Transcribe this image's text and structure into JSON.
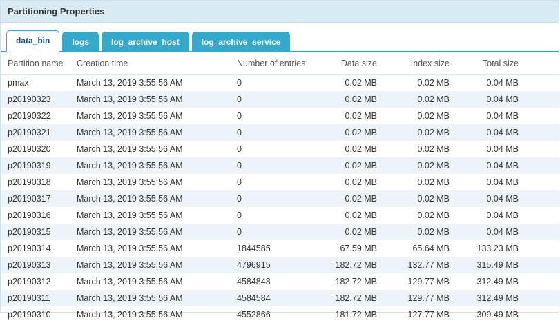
{
  "panel": {
    "title": "Partitioning Properties"
  },
  "tabs": [
    {
      "label": "data_bin",
      "active": true
    },
    {
      "label": "logs",
      "active": false
    },
    {
      "label": "log_archive_host",
      "active": false
    },
    {
      "label": "log_archive_service",
      "active": false
    }
  ],
  "table": {
    "columns": [
      "Partition name",
      "Creation time",
      "Number of entries",
      "Data size",
      "Index size",
      "Total size"
    ],
    "rows": [
      [
        "pmax",
        "March 13, 2019 3:55:56 AM",
        "0",
        "0.02 MB",
        "0.02 MB",
        "0.04 MB"
      ],
      [
        "p20190323",
        "March 13, 2019 3:55:56 AM",
        "0",
        "0.02 MB",
        "0.02 MB",
        "0.04 MB"
      ],
      [
        "p20190322",
        "March 13, 2019 3:55:56 AM",
        "0",
        "0.02 MB",
        "0.02 MB",
        "0.04 MB"
      ],
      [
        "p20190321",
        "March 13, 2019 3:55:56 AM",
        "0",
        "0.02 MB",
        "0.02 MB",
        "0.04 MB"
      ],
      [
        "p20190320",
        "March 13, 2019 3:55:56 AM",
        "0",
        "0.02 MB",
        "0.02 MB",
        "0.04 MB"
      ],
      [
        "p20190319",
        "March 13, 2019 3:55:56 AM",
        "0",
        "0.02 MB",
        "0.02 MB",
        "0.04 MB"
      ],
      [
        "p20190318",
        "March 13, 2019 3:55:56 AM",
        "0",
        "0.02 MB",
        "0.02 MB",
        "0.04 MB"
      ],
      [
        "p20190317",
        "March 13, 2019 3:55:56 AM",
        "0",
        "0.02 MB",
        "0.02 MB",
        "0.04 MB"
      ],
      [
        "p20190316",
        "March 13, 2019 3:55:56 AM",
        "0",
        "0.02 MB",
        "0.02 MB",
        "0.04 MB"
      ],
      [
        "p20190315",
        "March 13, 2019 3:55:56 AM",
        "0",
        "0.02 MB",
        "0.02 MB",
        "0.04 MB"
      ],
      [
        "p20190314",
        "March 13, 2019 3:55:56 AM",
        "1844585",
        "67.59 MB",
        "65.64 MB",
        "133.23 MB"
      ],
      [
        "p20190313",
        "March 13, 2019 3:55:56 AM",
        "4796915",
        "182.72 MB",
        "132.77 MB",
        "315.49 MB"
      ],
      [
        "p20190312",
        "March 13, 2019 3:55:56 AM",
        "4584848",
        "182.72 MB",
        "129.77 MB",
        "312.49 MB"
      ],
      [
        "p20190311",
        "March 13, 2019 3:55:56 AM",
        "4584584",
        "182.72 MB",
        "129.77 MB",
        "312.49 MB"
      ],
      [
        "p20190310",
        "March 13, 2019 3:55:56 AM",
        "4552866",
        "181.72 MB",
        "127.77 MB",
        "309.49 MB"
      ]
    ]
  },
  "colors": {
    "title_bar_bg": "#d8eaf3",
    "tab_active_text": "#16567e",
    "tab_inactive_bg": "#35a9cb",
    "row_alt_bg": "#edf4f9"
  }
}
